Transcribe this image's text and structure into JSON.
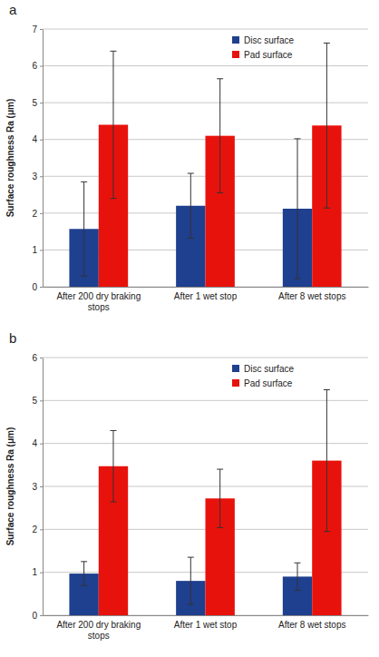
{
  "chart_data": [
    {
      "type": "bar",
      "title": "a",
      "ylabel": "Surface roughness Ra (μm)",
      "categories": [
        "After 200 dry braking stops",
        "After 1 wet stop",
        "After 8 wet stops"
      ],
      "series": [
        {
          "name": "Disc surface",
          "color": "#1f3f8f",
          "values": [
            1.57,
            2.2,
            2.12
          ],
          "errors": [
            1.28,
            0.88,
            1.9
          ]
        },
        {
          "name": "Pad surface",
          "color": "#e8120c",
          "values": [
            4.4,
            4.1,
            4.38
          ],
          "errors": [
            2.0,
            1.55,
            2.24
          ]
        }
      ],
      "ylim": [
        0,
        7
      ],
      "yticks": [
        0,
        1,
        2,
        3,
        4,
        5,
        6,
        7
      ],
      "grid": true,
      "legend": "upper right"
    },
    {
      "type": "bar",
      "title": "b",
      "ylabel": "Surface roughness Ra (μm)",
      "categories": [
        "After 200 dry braking stops",
        "After 1 wet stop",
        "After 8 wet stops"
      ],
      "series": [
        {
          "name": "Disc surface",
          "color": "#1f3f8f",
          "values": [
            0.97,
            0.8,
            0.9
          ],
          "errors": [
            0.28,
            0.55,
            0.32
          ]
        },
        {
          "name": "Pad surface",
          "color": "#e8120c",
          "values": [
            3.47,
            2.72,
            3.6
          ],
          "errors": [
            0.83,
            0.68,
            1.65
          ]
        }
      ],
      "ylim": [
        0,
        6
      ],
      "yticks": [
        0,
        1,
        2,
        3,
        4,
        5,
        6
      ],
      "grid": true,
      "legend": "upper right"
    }
  ]
}
